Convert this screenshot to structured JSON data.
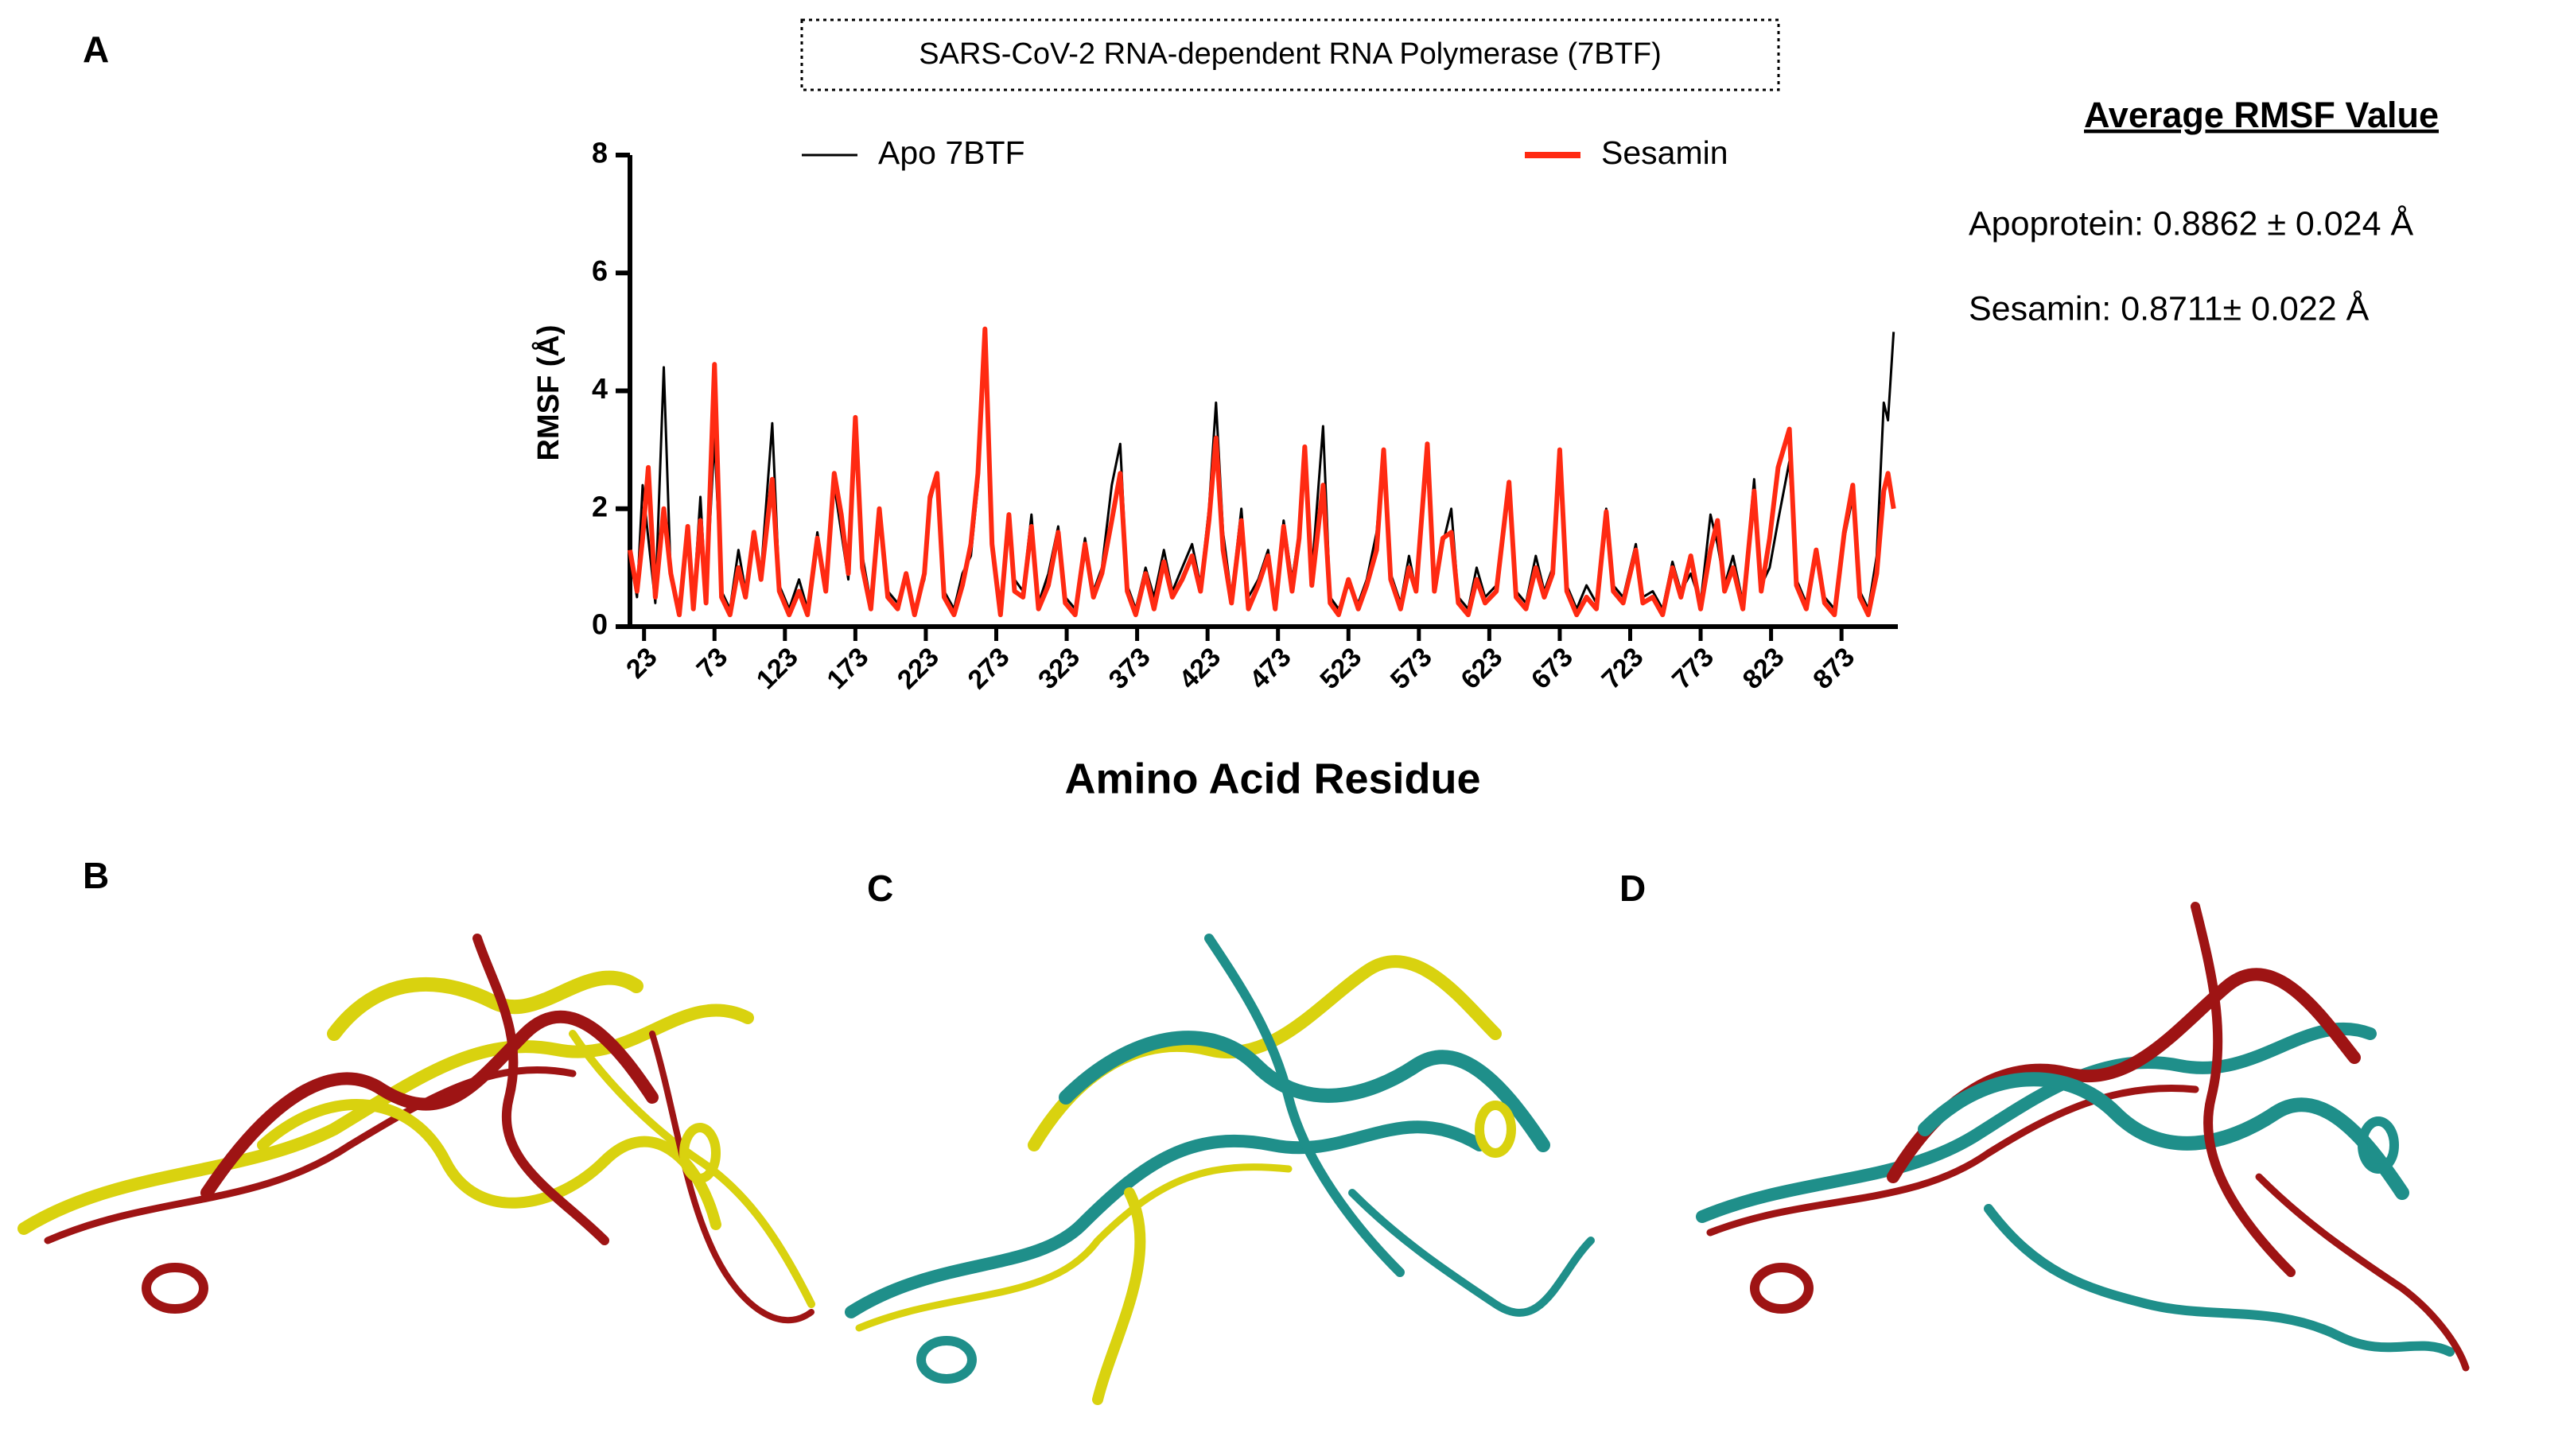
{
  "panel_labels": [
    "A",
    "B",
    "C",
    "D"
  ],
  "summary": {
    "title": "Average RMSF Value",
    "lines": [
      "Apoprotein: 0.8862 ± 0.024 Å",
      "Sesamin: 0.8711± 0.022 Å"
    ]
  },
  "chart_data": {
    "type": "line",
    "title": "SARS-CoV-2 RNA-dependent RNA Polymerase (7BTF)",
    "xlabel": "Amino Acid Residue",
    "ylabel": "RMSF (Å)",
    "xlim": [
      13,
      913
    ],
    "ylim": [
      0,
      8
    ],
    "xticks": [
      23,
      73,
      123,
      173,
      223,
      273,
      323,
      373,
      423,
      473,
      523,
      573,
      623,
      673,
      723,
      773,
      823,
      873
    ],
    "yticks": [
      0,
      2,
      4,
      6,
      8
    ],
    "x": [
      13,
      18,
      22,
      26,
      31,
      37,
      42,
      48,
      54,
      58,
      63,
      67,
      73,
      78,
      84,
      90,
      95,
      101,
      106,
      114,
      119,
      126,
      133,
      139,
      146,
      152,
      158,
      163,
      168,
      173,
      178,
      184,
      190,
      196,
      203,
      209,
      215,
      222,
      226,
      231,
      236,
      243,
      249,
      255,
      260,
      265,
      270,
      276,
      282,
      286,
      292,
      298,
      303,
      310,
      317,
      322,
      329,
      336,
      342,
      348,
      355,
      361,
      366,
      372,
      379,
      385,
      392,
      398,
      405,
      412,
      418,
      424,
      429,
      434,
      440,
      447,
      452,
      459,
      466,
      471,
      477,
      483,
      488,
      492,
      497,
      505,
      510,
      516,
      523,
      530,
      536,
      543,
      548,
      553,
      560,
      566,
      571,
      579,
      584,
      590,
      596,
      601,
      608,
      614,
      620,
      628,
      637,
      642,
      649,
      656,
      662,
      668,
      673,
      678,
      685,
      692,
      699,
      706,
      711,
      718,
      727,
      732,
      739,
      746,
      753,
      759,
      766,
      773,
      780,
      785,
      790,
      796,
      803,
      811,
      816,
      822,
      828,
      836,
      841,
      848,
      855,
      861,
      868,
      875,
      881,
      886,
      892,
      898,
      903,
      906,
      910
    ],
    "series": [
      {
        "name": "Apo 7BTF",
        "color": "#000000",
        "values": [
          1.2,
          0.5,
          2.4,
          1.5,
          0.4,
          4.4,
          0.8,
          0.3,
          1.6,
          0.4,
          2.2,
          0.5,
          3.2,
          0.6,
          0.3,
          1.3,
          0.6,
          1.6,
          0.9,
          3.45,
          0.7,
          0.3,
          0.8,
          0.3,
          1.6,
          0.7,
          2.4,
          1.6,
          0.8,
          3.4,
          1.2,
          0.4,
          1.9,
          0.6,
          0.4,
          0.9,
          0.3,
          0.8,
          2.1,
          2.6,
          0.6,
          0.3,
          0.9,
          1.2,
          2.4,
          4.7,
          1.3,
          0.3,
          1.8,
          0.8,
          0.6,
          1.9,
          0.4,
          0.9,
          1.7,
          0.5,
          0.3,
          1.5,
          0.6,
          1.0,
          2.4,
          3.1,
          0.7,
          0.3,
          1.0,
          0.5,
          1.3,
          0.6,
          1.0,
          1.4,
          0.7,
          2.0,
          3.8,
          1.6,
          0.5,
          2.0,
          0.5,
          0.8,
          1.3,
          0.4,
          1.8,
          0.8,
          1.6,
          2.8,
          0.9,
          3.4,
          0.5,
          0.3,
          0.7,
          0.4,
          0.8,
          1.6,
          3.0,
          0.9,
          0.4,
          1.2,
          0.6,
          2.9,
          0.7,
          1.4,
          2.0,
          0.5,
          0.3,
          1.0,
          0.5,
          0.7,
          2.3,
          0.6,
          0.4,
          1.2,
          0.6,
          1.0,
          2.9,
          0.7,
          0.3,
          0.7,
          0.4,
          2.0,
          0.7,
          0.5,
          1.4,
          0.5,
          0.6,
          0.3,
          1.1,
          0.6,
          0.9,
          0.4,
          1.9,
          1.4,
          0.7,
          1.2,
          0.4,
          2.5,
          0.7,
          1.0,
          1.8,
          2.8,
          0.8,
          0.4,
          1.2,
          0.5,
          0.3,
          1.5,
          2.2,
          0.6,
          0.3,
          1.2,
          3.8,
          3.5,
          5.0
        ]
      },
      {
        "name": "Sesamin",
        "color": "#ff2a12",
        "values": [
          1.3,
          0.6,
          1.5,
          2.7,
          0.5,
          2.0,
          0.9,
          0.2,
          1.7,
          0.3,
          1.8,
          0.4,
          4.45,
          0.5,
          0.2,
          1.0,
          0.5,
          1.6,
          0.8,
          2.5,
          0.6,
          0.2,
          0.6,
          0.2,
          1.5,
          0.6,
          2.6,
          1.9,
          0.9,
          3.55,
          1.0,
          0.3,
          2.0,
          0.5,
          0.3,
          0.9,
          0.2,
          0.9,
          2.2,
          2.6,
          0.5,
          0.2,
          0.7,
          1.4,
          2.6,
          5.05,
          1.4,
          0.2,
          1.9,
          0.6,
          0.5,
          1.7,
          0.3,
          0.7,
          1.6,
          0.4,
          0.2,
          1.4,
          0.5,
          0.9,
          1.8,
          2.6,
          0.6,
          0.2,
          0.9,
          0.3,
          1.1,
          0.5,
          0.8,
          1.2,
          0.6,
          1.8,
          3.2,
          1.3,
          0.4,
          1.8,
          0.3,
          0.7,
          1.2,
          0.3,
          1.7,
          0.6,
          1.5,
          3.05,
          0.7,
          2.4,
          0.4,
          0.2,
          0.8,
          0.3,
          0.7,
          1.3,
          3.0,
          0.8,
          0.3,
          1.0,
          0.6,
          3.1,
          0.6,
          1.5,
          1.6,
          0.4,
          0.2,
          0.8,
          0.4,
          0.6,
          2.45,
          0.5,
          0.3,
          1.0,
          0.5,
          0.9,
          3.0,
          0.6,
          0.2,
          0.5,
          0.3,
          1.95,
          0.6,
          0.4,
          1.3,
          0.4,
          0.5,
          0.2,
          1.0,
          0.5,
          1.2,
          0.3,
          1.3,
          1.8,
          0.6,
          1.0,
          0.3,
          2.3,
          0.6,
          1.5,
          2.7,
          3.35,
          0.7,
          0.3,
          1.3,
          0.4,
          0.2,
          1.6,
          2.4,
          0.5,
          0.2,
          0.9,
          2.3,
          2.6,
          2.0
        ]
      }
    ]
  }
}
